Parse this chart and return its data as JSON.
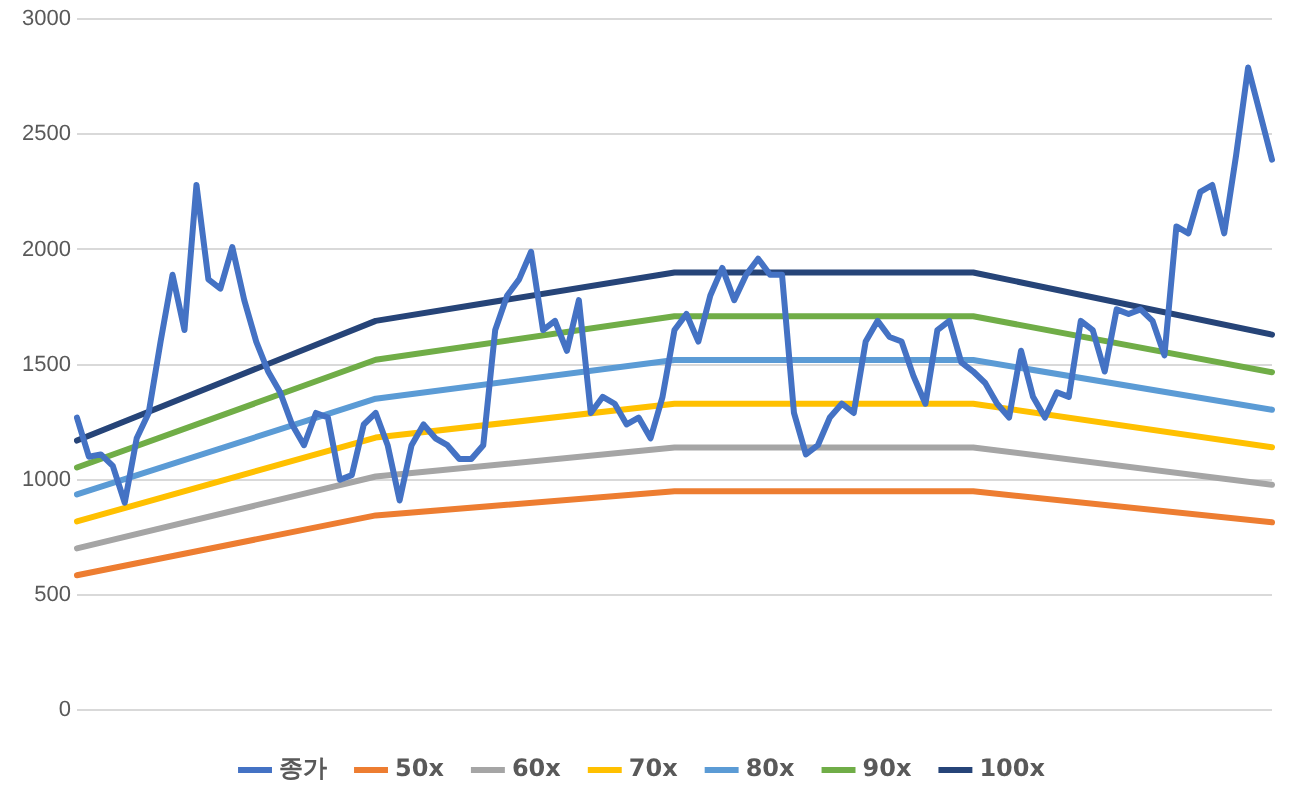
{
  "chart_data": {
    "type": "line",
    "categories": [
      null,
      null,
      null,
      null,
      null,
      null,
      null,
      null,
      null,
      null,
      null,
      null,
      null,
      null,
      null,
      null,
      null,
      null,
      null,
      null,
      null,
      null,
      null,
      null,
      null,
      null,
      null,
      null,
      null,
      null,
      null,
      null,
      null,
      null,
      null,
      null,
      null,
      null,
      null,
      null,
      null,
      null,
      null,
      null,
      null,
      null,
      null,
      null,
      null,
      null,
      null,
      null,
      null,
      null,
      null,
      null,
      null,
      null,
      null,
      null,
      null,
      null,
      null,
      null,
      null,
      null,
      null,
      null,
      null,
      null,
      null,
      null,
      null,
      null,
      null,
      null,
      null,
      null,
      null,
      null,
      null,
      null,
      null,
      null,
      null,
      null,
      null,
      null,
      null,
      null,
      null,
      null,
      null,
      null,
      null,
      null,
      null,
      null,
      null,
      null,
      null
    ],
    "series": [
      {
        "name": "종가",
        "color": "#4472c4",
        "values": [
          1270,
          1100,
          1110,
          1060,
          900,
          1180,
          1290,
          1600,
          1890,
          1650,
          2280,
          1870,
          1830,
          2010,
          1780,
          1600,
          1470,
          1380,
          1240,
          1150,
          1290,
          1270,
          1000,
          1020,
          1240,
          1290,
          1150,
          910,
          1150,
          1240,
          1180,
          1150,
          1090,
          1090,
          1150,
          1650,
          1800,
          1870,
          1990,
          1650,
          1690,
          1560,
          1780,
          1290,
          1360,
          1330,
          1240,
          1270,
          1180,
          1360,
          1650,
          1720,
          1600,
          1800,
          1920,
          1780,
          1890,
          1960,
          1890,
          1890,
          1290,
          1110,
          1150,
          1270,
          1330,
          1290,
          1600,
          1690,
          1620,
          1600,
          1450,
          1330,
          1650,
          1690,
          1510,
          1470,
          1420,
          1330,
          1270,
          1560,
          1360,
          1270,
          1380,
          1360,
          1690,
          1650,
          1470,
          1740,
          1720,
          1740,
          1690,
          1540,
          2100,
          2070,
          2250,
          2280,
          2070,
          2410,
          2790,
          2590,
          2390
        ]
      },
      {
        "name": "50x",
        "color": "#ed7d31",
        "values": [
          585,
          null,
          null,
          null,
          null,
          null,
          null,
          null,
          null,
          null,
          null,
          null,
          null,
          null,
          null,
          null,
          null,
          null,
          null,
          null,
          null,
          null,
          null,
          null,
          null,
          845,
          null,
          null,
          null,
          null,
          null,
          null,
          null,
          null,
          null,
          null,
          null,
          null,
          null,
          null,
          null,
          null,
          null,
          null,
          null,
          null,
          null,
          null,
          null,
          null,
          950,
          null,
          null,
          null,
          null,
          null,
          null,
          null,
          null,
          null,
          null,
          null,
          null,
          null,
          null,
          null,
          null,
          null,
          null,
          null,
          null,
          null,
          null,
          null,
          null,
          950,
          null,
          null,
          null,
          null,
          null,
          null,
          null,
          null,
          null,
          null,
          null,
          null,
          null,
          null,
          null,
          null,
          null,
          null,
          null,
          null,
          null,
          null,
          null,
          null,
          815
        ]
      },
      {
        "name": "60x",
        "color": "#a5a5a5",
        "values": [
          702,
          null,
          null,
          null,
          null,
          null,
          null,
          null,
          null,
          null,
          null,
          null,
          null,
          null,
          null,
          null,
          null,
          null,
          null,
          null,
          null,
          null,
          null,
          null,
          null,
          1014,
          null,
          null,
          null,
          null,
          null,
          null,
          null,
          null,
          null,
          null,
          null,
          null,
          null,
          null,
          null,
          null,
          null,
          null,
          null,
          null,
          null,
          null,
          null,
          null,
          1140,
          null,
          null,
          null,
          null,
          null,
          null,
          null,
          null,
          null,
          null,
          null,
          null,
          null,
          null,
          null,
          null,
          null,
          null,
          null,
          null,
          null,
          null,
          null,
          null,
          1140,
          null,
          null,
          null,
          null,
          null,
          null,
          null,
          null,
          null,
          null,
          null,
          null,
          null,
          null,
          null,
          null,
          null,
          null,
          null,
          null,
          null,
          null,
          null,
          null,
          978
        ]
      },
      {
        "name": "70x",
        "color": "#ffc000",
        "values": [
          819,
          null,
          null,
          null,
          null,
          null,
          null,
          null,
          null,
          null,
          null,
          null,
          null,
          null,
          null,
          null,
          null,
          null,
          null,
          null,
          null,
          null,
          null,
          null,
          null,
          1183,
          null,
          null,
          null,
          null,
          null,
          null,
          null,
          null,
          null,
          null,
          null,
          null,
          null,
          null,
          null,
          null,
          null,
          null,
          null,
          null,
          null,
          null,
          null,
          null,
          1330,
          null,
          null,
          null,
          null,
          null,
          null,
          null,
          null,
          null,
          null,
          null,
          null,
          null,
          null,
          null,
          null,
          null,
          null,
          null,
          null,
          null,
          null,
          null,
          null,
          1330,
          null,
          null,
          null,
          null,
          null,
          null,
          null,
          null,
          null,
          null,
          null,
          null,
          null,
          null,
          null,
          null,
          null,
          null,
          null,
          null,
          null,
          null,
          null,
          null,
          1141
        ]
      },
      {
        "name": "80x",
        "color": "#5b9bd5",
        "values": [
          936,
          null,
          null,
          null,
          null,
          null,
          null,
          null,
          null,
          null,
          null,
          null,
          null,
          null,
          null,
          null,
          null,
          null,
          null,
          null,
          null,
          null,
          null,
          null,
          null,
          1352,
          null,
          null,
          null,
          null,
          null,
          null,
          null,
          null,
          null,
          null,
          null,
          null,
          null,
          null,
          null,
          null,
          null,
          null,
          null,
          null,
          null,
          null,
          null,
          null,
          1520,
          null,
          null,
          null,
          null,
          null,
          null,
          null,
          null,
          null,
          null,
          null,
          null,
          null,
          null,
          null,
          null,
          null,
          null,
          null,
          null,
          null,
          null,
          null,
          null,
          1520,
          null,
          null,
          null,
          null,
          null,
          null,
          null,
          null,
          null,
          null,
          null,
          null,
          null,
          null,
          null,
          null,
          null,
          null,
          null,
          null,
          null,
          null,
          null,
          null,
          1304
        ]
      },
      {
        "name": "90x",
        "color": "#70ad47",
        "values": [
          1053,
          null,
          null,
          null,
          null,
          null,
          null,
          null,
          null,
          null,
          null,
          null,
          null,
          null,
          null,
          null,
          null,
          null,
          null,
          null,
          null,
          null,
          null,
          null,
          null,
          1521,
          null,
          null,
          null,
          null,
          null,
          null,
          null,
          null,
          null,
          null,
          null,
          null,
          null,
          null,
          null,
          null,
          null,
          null,
          null,
          null,
          null,
          null,
          null,
          null,
          1710,
          null,
          null,
          null,
          null,
          null,
          null,
          null,
          null,
          null,
          null,
          null,
          null,
          null,
          null,
          null,
          null,
          null,
          null,
          null,
          null,
          null,
          null,
          null,
          null,
          1710,
          null,
          null,
          null,
          null,
          null,
          null,
          null,
          null,
          null,
          null,
          null,
          null,
          null,
          null,
          null,
          null,
          null,
          null,
          null,
          null,
          null,
          null,
          null,
          null,
          1467
        ]
      },
      {
        "name": "100x",
        "color": "#264478",
        "values": [
          1170,
          null,
          null,
          null,
          null,
          null,
          null,
          null,
          null,
          null,
          null,
          null,
          null,
          null,
          null,
          null,
          null,
          null,
          null,
          null,
          null,
          null,
          null,
          null,
          null,
          1690,
          null,
          null,
          null,
          null,
          null,
          null,
          null,
          null,
          null,
          null,
          null,
          null,
          null,
          null,
          null,
          null,
          null,
          null,
          null,
          null,
          null,
          null,
          null,
          null,
          1900,
          null,
          null,
          null,
          null,
          null,
          null,
          null,
          null,
          null,
          null,
          null,
          null,
          null,
          null,
          null,
          null,
          null,
          null,
          null,
          null,
          null,
          null,
          null,
          null,
          1900,
          null,
          null,
          null,
          null,
          null,
          null,
          null,
          null,
          null,
          null,
          null,
          null,
          null,
          null,
          null,
          null,
          null,
          null,
          null,
          null,
          null,
          null,
          null,
          null,
          1630
        ]
      }
    ],
    "ylim": [
      0,
      3000
    ],
    "yticks": [
      0,
      500,
      1000,
      1500,
      2000,
      2500,
      3000
    ],
    "tick_labels": "y",
    "grid": "y",
    "legend": "bottom",
    "marker": "none",
    "line_style": "solid"
  }
}
